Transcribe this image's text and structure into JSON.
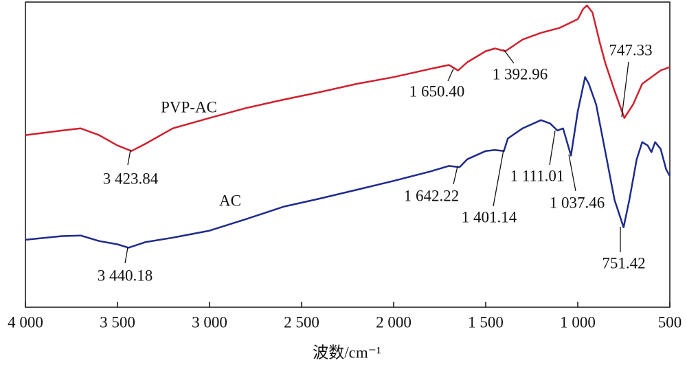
{
  "chart_data": {
    "type": "line",
    "xlabel": "波数/cm⁻¹",
    "xlim": [
      4000,
      500
    ],
    "ylim": [
      0,
      100
    ],
    "xticks": [
      {
        "value": 4000,
        "label": "4 000"
      },
      {
        "value": 3500,
        "label": "3 500"
      },
      {
        "value": 3000,
        "label": "3 000"
      },
      {
        "value": 2500,
        "label": "2 500"
      },
      {
        "value": 2000,
        "label": "2 000"
      },
      {
        "value": 1500,
        "label": "1 500"
      },
      {
        "value": 1000,
        "label": "1 000"
      },
      500
    ],
    "series": [
      {
        "name": "PVP-AC",
        "color": "#d0202e",
        "x": [
          4000,
          3800,
          3700,
          3600,
          3500,
          3424,
          3350,
          3200,
          3000,
          2800,
          2600,
          2400,
          2200,
          2000,
          1800,
          1700,
          1650,
          1600,
          1500,
          1450,
          1393,
          1300,
          1200,
          1100,
          1000,
          970,
          950,
          920,
          880,
          850,
          800,
          747,
          700,
          650,
          600,
          550,
          500
        ],
        "values": [
          56.4,
          57.9,
          58.6,
          56.4,
          53.0,
          51.2,
          53.5,
          58.6,
          62.0,
          65.3,
          68.0,
          70.5,
          73.2,
          75.4,
          78.1,
          79.4,
          77.6,
          80.3,
          83.9,
          84.8,
          83.9,
          87.7,
          89.9,
          91.5,
          94.4,
          97.8,
          98.9,
          96.6,
          86.6,
          79.9,
          70.9,
          62.0,
          66.4,
          73.2,
          75.4,
          77.6,
          78.7
        ]
      },
      {
        "name": "AC",
        "color": "#1f2a8c",
        "x": [
          4000,
          3800,
          3700,
          3600,
          3500,
          3440,
          3350,
          3200,
          3000,
          2800,
          2600,
          2400,
          2200,
          2000,
          1800,
          1700,
          1642,
          1600,
          1500,
          1450,
          1401,
          1380,
          1300,
          1200,
          1150,
          1111,
          1080,
          1037,
          1000,
          960,
          940,
          900,
          850,
          800,
          751,
          720,
          680,
          650,
          620,
          600,
          580,
          550,
          520,
          500
        ],
        "values": [
          22.1,
          23.3,
          23.5,
          21.7,
          20.6,
          19.5,
          21.3,
          22.8,
          25.1,
          28.9,
          32.9,
          35.6,
          38.5,
          41.4,
          44.5,
          46.3,
          45.9,
          48.5,
          51.2,
          51.5,
          51.2,
          55.3,
          58.6,
          61.3,
          60.2,
          57.9,
          58.6,
          49.7,
          64.2,
          75.4,
          73.2,
          66.4,
          50.8,
          35.1,
          26.2,
          35.1,
          48.5,
          54.1,
          53.0,
          50.8,
          54.1,
          51.9,
          45.2,
          43.0
        ]
      }
    ],
    "annotations": [
      "3 423.84",
      "1 650.40",
      "1 392.96",
      "747.33",
      "3 440.18",
      "1 642.22",
      "1 401.14",
      "1 111.01",
      "1 037.46",
      "751.42"
    ]
  }
}
